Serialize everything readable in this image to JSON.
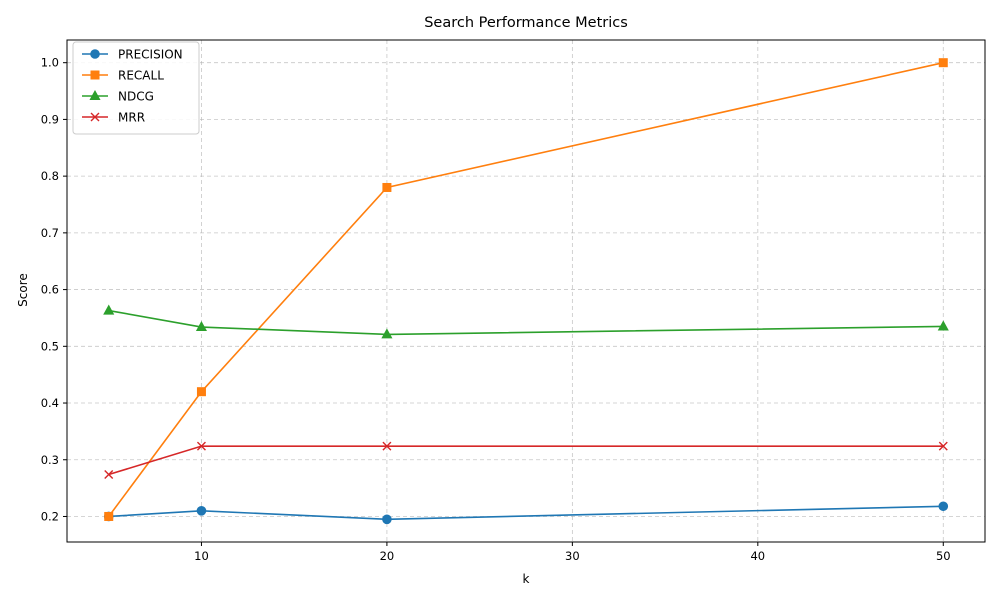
{
  "chart_data": {
    "type": "line",
    "title": "Search Performance Metrics",
    "xlabel": "k",
    "ylabel": "Score",
    "x": [
      5,
      10,
      20,
      50
    ],
    "xlim": [
      2.75,
      52.25
    ],
    "ylim": [
      0.155,
      1.04
    ],
    "xticks": [
      10,
      20,
      30,
      40,
      50
    ],
    "yticks": [
      0.2,
      0.3,
      0.4,
      0.5,
      0.6,
      0.7,
      0.8,
      0.9,
      1.0
    ],
    "xtick_labels": [
      "10",
      "20",
      "30",
      "40",
      "50"
    ],
    "ytick_labels": [
      "0.2",
      "0.3",
      "0.4",
      "0.5",
      "0.6",
      "0.7",
      "0.8",
      "0.9",
      "1.0"
    ],
    "grid": true,
    "grid_style": "dashed",
    "legend_position": "upper-left",
    "series": [
      {
        "name": "PRECISION",
        "values": [
          0.2,
          0.21,
          0.195,
          0.218
        ],
        "color": "#1f77b4",
        "marker": "circle"
      },
      {
        "name": "RECALL",
        "values": [
          0.2,
          0.42,
          0.78,
          1.0
        ],
        "color": "#ff7f0e",
        "marker": "square"
      },
      {
        "name": "NDCG",
        "values": [
          0.563,
          0.534,
          0.521,
          0.535
        ],
        "color": "#2ca02c",
        "marker": "triangle"
      },
      {
        "name": "MRR",
        "values": [
          0.274,
          0.324,
          0.324,
          0.324
        ],
        "color": "#d62728",
        "marker": "x"
      }
    ]
  }
}
